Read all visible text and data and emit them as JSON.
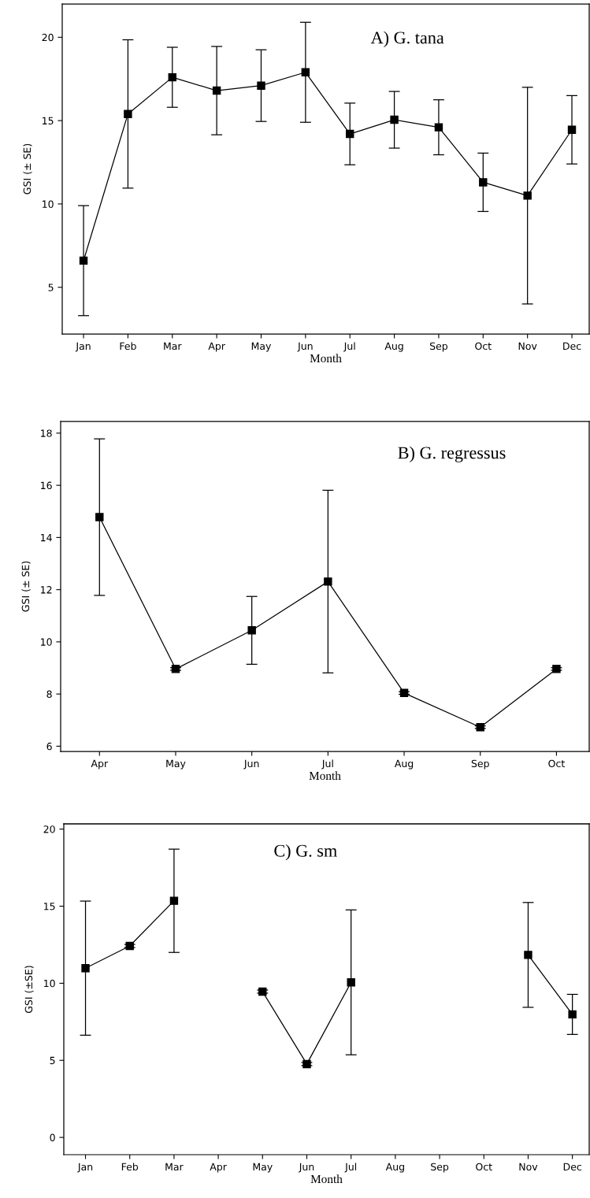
{
  "chart_data": [
    {
      "type": "line",
      "title": "A) G. tana",
      "xlabel": "Month",
      "ylabel": "GSI (± SE)",
      "categories": [
        "Jan",
        "Feb",
        "Mar",
        "Apr",
        "May",
        "Jun",
        "Jul",
        "Aug",
        "Sep",
        "Oct",
        "Nov",
        "Dec"
      ],
      "values": [
        6.6,
        15.4,
        17.6,
        16.8,
        17.1,
        17.9,
        14.2,
        15.05,
        14.6,
        11.3,
        10.5,
        14.45
      ],
      "errors": [
        3.3,
        4.45,
        1.8,
        2.65,
        2.15,
        3.0,
        1.85,
        1.7,
        1.65,
        1.75,
        6.5,
        2.05
      ],
      "color": "#000000",
      "marker": "square",
      "line_style": "solid",
      "ylim": [
        2.2,
        22
      ],
      "yticks": [
        5,
        10,
        15,
        20
      ],
      "grid": false,
      "legend": false
    },
    {
      "type": "line",
      "title": "B) G. regressus",
      "xlabel": "Month",
      "ylabel": "GSI (± SE)",
      "categories": [
        "Apr",
        "May",
        "Jun",
        "Jul",
        "Aug",
        "Sep",
        "Oct"
      ],
      "values": [
        14.78,
        8.96,
        10.44,
        12.31,
        8.04,
        6.73,
        8.96
      ],
      "errors": [
        3.0,
        0.05,
        1.3,
        3.5,
        0.05,
        0.05,
        0.05
      ],
      "color": "#000000",
      "marker": "square",
      "line_style": "solid",
      "ylim": [
        5.8,
        18.45
      ],
      "yticks": [
        6,
        8,
        10,
        12,
        14,
        16,
        18
      ],
      "grid": false,
      "legend": false
    },
    {
      "type": "line",
      "title": "C) G. sm",
      "xlabel": "Month",
      "ylabel": "GSI (±SE)",
      "categories": [
        "Jan",
        "Feb",
        "Mar",
        "Apr",
        "May",
        "Jun",
        "Jul",
        "Aug",
        "Sep",
        "Oct",
        "Nov",
        "Dec"
      ],
      "values": [
        10.98,
        12.42,
        15.35,
        null,
        9.46,
        4.76,
        10.06,
        null,
        null,
        null,
        11.84,
        7.98
      ],
      "errors": [
        4.35,
        0.1,
        3.35,
        null,
        0.1,
        0.1,
        4.7,
        null,
        null,
        null,
        3.4,
        1.3
      ],
      "color": "#000000",
      "marker": "square",
      "line_style": "solid",
      "ylim": [
        -1.12,
        20.34
      ],
      "yticks": [
        0,
        5,
        10,
        15,
        20
      ],
      "grid": false,
      "legend": false
    }
  ]
}
